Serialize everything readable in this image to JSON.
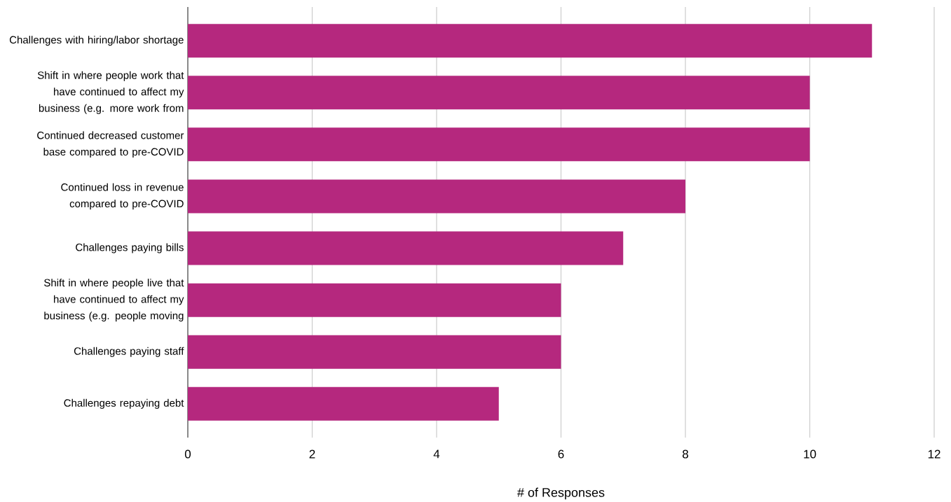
{
  "chart_data": {
    "type": "bar",
    "orientation": "horizontal",
    "categories": [
      "Challenges with hiring/labor shortage",
      "Shift in where people work that have continued to affect my business (e.g. more work from",
      "Continued decreased customer base compared to pre-COVID",
      "Continued loss in revenue compared to pre-COVID",
      "Challenges paying bills",
      "Shift in where people live that have continued to affect my business (e.g. people moving",
      "Challenges paying staff",
      "Challenges repaying debt"
    ],
    "values": [
      11,
      10,
      10,
      8,
      7,
      6,
      6,
      5
    ],
    "color": "#b5287e",
    "xlim": [
      0,
      12
    ],
    "xticks": [
      0,
      2,
      4,
      6,
      8,
      10,
      12
    ],
    "xlabel": "# of Responses",
    "grid": "x"
  }
}
